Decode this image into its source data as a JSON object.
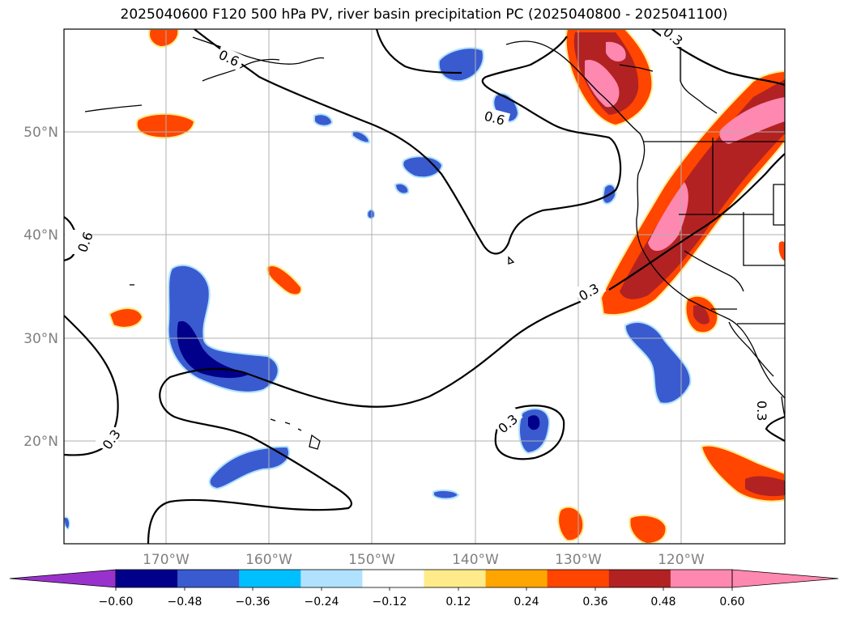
{
  "title": "2025040600 F120 500 hPa PV, river basin precipitation PC (2025040800 - 2025041100)",
  "map": {
    "lon_labels": [
      "170°W",
      "160°W",
      "150°W",
      "140°W",
      "130°W",
      "120°W"
    ],
    "lat_labels": [
      "50°N",
      "40°N",
      "30°N",
      "20°N"
    ],
    "contour_labels": [
      "0.6",
      "0.6",
      "0.6",
      "0.3",
      "0.3",
      "0.3",
      "0.3",
      "0.3"
    ]
  },
  "colorbar": {
    "ticks": [
      "−0.60",
      "−0.48",
      "−0.36",
      "−0.24",
      "−0.12",
      "0.12",
      "0.24",
      "0.36",
      "0.48",
      "0.60"
    ],
    "colors": {
      "below_min": "#9932cc",
      "bins": [
        "#00008b",
        "#3a5bcf",
        "#00bfff",
        "#b0e2ff",
        "#ffffff",
        "#ffeb8a",
        "#ffa500",
        "#ff4500",
        "#b22222",
        "#ff88b0"
      ],
      "above_max": "#ff88b0"
    }
  },
  "colors": {
    "neg_strong": "#00008b",
    "neg_mid": "#3a5bcf",
    "neg_light": "#00bfff",
    "neg_faint": "#b0e2ff",
    "pos_faint": "#ffeb8a",
    "pos_light": "#ffa500",
    "pos_mid": "#ff4500",
    "pos_strong": "#b22222",
    "pos_max": "#ff88b0",
    "grid": "#b0b0b0",
    "axis_label": "#808080"
  }
}
